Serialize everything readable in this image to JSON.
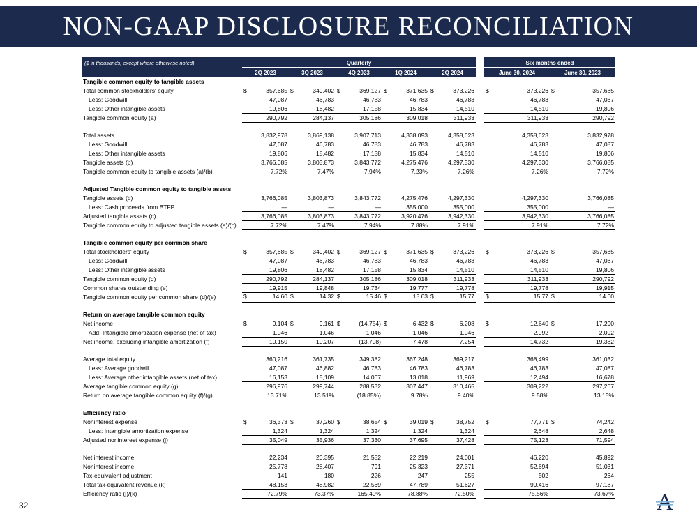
{
  "slide": {
    "title": "NON-GAAP DISCLOSURE RECONCILIATION",
    "page_number": "32",
    "logo_letter": "A",
    "accent_navy": "#1c2b4d",
    "logo_line_blue": "#7fb2d9"
  },
  "table": {
    "note": "($ in thousands, except where otherwise noted)",
    "group_headers": [
      {
        "label": "Quarterly"
      },
      {
        "label": "Six months ended"
      }
    ],
    "quarter_columns": [
      "2Q 2023",
      "3Q 2023",
      "4Q 2023",
      "1Q 2024",
      "2Q 2024"
    ],
    "period_columns": [
      "June 30, 2024",
      "June 30, 2023"
    ],
    "rows": [
      {
        "type": "section",
        "label": "Tangible common equity to tangible assets"
      },
      {
        "type": "data",
        "label": "Total common stockholders' equity",
        "dollar": true,
        "values": [
          "357,685",
          "349,402",
          "369,127",
          "371,635",
          "373,226",
          "373,226",
          "357,685"
        ]
      },
      {
        "type": "data",
        "label": "Less: Goodwill",
        "indent": true,
        "values": [
          "47,087",
          "46,783",
          "46,783",
          "46,783",
          "46,783",
          "46,783",
          "47,087"
        ]
      },
      {
        "type": "data",
        "label": "Less: Other intangible assets",
        "indent": true,
        "values": [
          "19,806",
          "18,482",
          "17,158",
          "15,834",
          "14,510",
          "14,510",
          "19,806"
        ]
      },
      {
        "type": "data",
        "label": "Tangible common equity (a)",
        "border": "total",
        "values": [
          "290,792",
          "284,137",
          "305,186",
          "309,018",
          "311,933",
          "311,933",
          "290,792"
        ]
      },
      {
        "type": "blank"
      },
      {
        "type": "data",
        "label": "Total assets",
        "values": [
          "3,832,978",
          "3,869,138",
          "3,907,713",
          "4,338,093",
          "4,358,623",
          "4,358,623",
          "3,832,978"
        ]
      },
      {
        "type": "data",
        "label": "Less: Goodwill",
        "indent": true,
        "values": [
          "47,087",
          "46,783",
          "46,783",
          "46,783",
          "46,783",
          "46,783",
          "47,087"
        ]
      },
      {
        "type": "data",
        "label": "Less: Other intangible assets",
        "indent": true,
        "values": [
          "19,806",
          "18,482",
          "17,158",
          "15,834",
          "14,510",
          "14,510",
          "19,806"
        ]
      },
      {
        "type": "data",
        "label": "Tangible assets (b)",
        "border": "total",
        "values": [
          "3,766,085",
          "3,803,873",
          "3,843,772",
          "4,275,476",
          "4,297,330",
          "4,297,330",
          "3,766,085"
        ]
      },
      {
        "type": "data",
        "label": "Tangible common equity to tangible assets (a)/(b)",
        "border": "bottom",
        "values": [
          "7.72%",
          "7.47%",
          "7.94%",
          "7.23%",
          "7.26%",
          "7.26%",
          "7.72%"
        ]
      },
      {
        "type": "blank"
      },
      {
        "type": "section",
        "label": "Adjusted Tangible common equity to tangible assets"
      },
      {
        "type": "data",
        "label": "Tangible assets (b)",
        "values": [
          "3,766,085",
          "3,803,873",
          "3,843,772",
          "4,275,476",
          "4,297,330",
          "4,297,330",
          "3,766,085"
        ]
      },
      {
        "type": "data",
        "label": "Less: Cash proceeds from BTFP",
        "indent": true,
        "values": [
          "—",
          "—",
          "—",
          "355,000",
          "355,000",
          "355,000",
          "—"
        ]
      },
      {
        "type": "data",
        "label": "Adjusted tangible assets (c)",
        "border": "total",
        "values": [
          "3,766,085",
          "3,803,873",
          "3,843,772",
          "3,920,476",
          "3,942,330",
          "3,942,330",
          "3,766,085"
        ]
      },
      {
        "type": "data",
        "label": "Tangible common equity to adjusted tangible assets (a)/(c)",
        "border": "bottom",
        "values": [
          "7.72%",
          "7.47%",
          "7.94%",
          "7.88%",
          "7.91%",
          "7.91%",
          "7.72%"
        ]
      },
      {
        "type": "blank"
      },
      {
        "type": "section",
        "label": "Tangible common equity per common share"
      },
      {
        "type": "data",
        "label": "Total stockholders' equity",
        "dollar": true,
        "values": [
          "357,685",
          "349,402",
          "369,127",
          "371,635",
          "373,226",
          "373,226",
          "357,685"
        ]
      },
      {
        "type": "data",
        "label": "Less: Goodwill",
        "indent": true,
        "values": [
          "47,087",
          "46,783",
          "46,783",
          "46,783",
          "46,783",
          "46,783",
          "47,087"
        ]
      },
      {
        "type": "data",
        "label": "Less: Other intangible assets",
        "indent": true,
        "values": [
          "19,806",
          "18,482",
          "17,158",
          "15,834",
          "14,510",
          "14,510",
          "19,806"
        ]
      },
      {
        "type": "data",
        "label": "Tangible common equity (d)",
        "border": "total",
        "values": [
          "290,792",
          "284,137",
          "305,186",
          "309,018",
          "311,933",
          "311,933",
          "290,792"
        ]
      },
      {
        "type": "data",
        "label": "Common shares outstanding (e)",
        "values": [
          "19,915",
          "19,848",
          "19,734",
          "19,777",
          "19,778",
          "19,778",
          "19,915"
        ]
      },
      {
        "type": "data",
        "label": "Tangible common equity per common share (d)/(e)",
        "dollar": true,
        "border": "final",
        "values": [
          "14.60",
          "14.32",
          "15.46",
          "15.63",
          "15.77",
          "15.77",
          "14.60"
        ]
      },
      {
        "type": "blank"
      },
      {
        "type": "section",
        "label": "Return on average tangible common equity"
      },
      {
        "type": "data",
        "label": "Net income",
        "dollar": true,
        "values": [
          "9,104",
          "9,161",
          "(14,754)",
          "6,432",
          "6,208",
          "12,640",
          "17,290"
        ]
      },
      {
        "type": "data",
        "label": "Add: Intangible amortization expense (net of tax)",
        "indent": true,
        "values": [
          "1,046",
          "1,046",
          "1,046",
          "1,046",
          "1,046",
          "2,092",
          "2,092"
        ]
      },
      {
        "type": "data",
        "label": "Net income, excluding intangible amortization (f)",
        "border": "total",
        "values": [
          "10,150",
          "10,207",
          "(13,708)",
          "7,478",
          "7,254",
          "14,732",
          "19,382"
        ]
      },
      {
        "type": "blank"
      },
      {
        "type": "data",
        "label": "Average total equity",
        "values": [
          "360,216",
          "361,735",
          "349,382",
          "367,248",
          "369,217",
          "368,499",
          "361,032"
        ]
      },
      {
        "type": "data",
        "label": "Less: Average goodwill",
        "indent": true,
        "values": [
          "47,087",
          "46,882",
          "46,783",
          "46,783",
          "46,783",
          "46,783",
          "47,087"
        ]
      },
      {
        "type": "data",
        "label": "Less: Average other intangible assets (net of tax)",
        "indent": true,
        "values": [
          "16,153",
          "15,109",
          "14,067",
          "13,018",
          "11,969",
          "12,494",
          "16,678"
        ]
      },
      {
        "type": "data",
        "label": "Average tangible common equity (g)",
        "border": "total",
        "values": [
          "296,976",
          "299,744",
          "288,532",
          "307,447",
          "310,465",
          "309,222",
          "297,267"
        ]
      },
      {
        "type": "data",
        "label": "Return on average tangible common equity (f)/(g)",
        "border": "bottom",
        "values": [
          "13.71%",
          "13.51%",
          "(18.85%)",
          "9.78%",
          "9.40%",
          "9.58%",
          "13.15%"
        ]
      },
      {
        "type": "blank"
      },
      {
        "type": "section",
        "label": "Efficiency ratio"
      },
      {
        "type": "data",
        "label": "Noninterest expense",
        "dollar": true,
        "values": [
          "36,373",
          "37,260",
          "38,654",
          "39,019",
          "38,752",
          "77,771",
          "74,242"
        ]
      },
      {
        "type": "data",
        "label": "Less: Intangible amortization expense",
        "indent": true,
        "values": [
          "1,324",
          "1,324",
          "1,324",
          "1,324",
          "1,324",
          "2,648",
          "2,648"
        ]
      },
      {
        "type": "data",
        "label": "Adjusted noninterest expense (j)",
        "border": "total",
        "values": [
          "35,049",
          "35,936",
          "37,330",
          "37,695",
          "37,428",
          "75,123",
          "71,594"
        ]
      },
      {
        "type": "blank"
      },
      {
        "type": "data",
        "label": "Net interest income",
        "values": [
          "22,234",
          "20,395",
          "21,552",
          "22,219",
          "24,001",
          "46,220",
          "45,892"
        ]
      },
      {
        "type": "data",
        "label": "Noninterest income",
        "values": [
          "25,778",
          "28,407",
          "791",
          "25,323",
          "27,371",
          "52,694",
          "51,031"
        ]
      },
      {
        "type": "data",
        "label": "Tax-equivalent adjustment",
        "values": [
          "141",
          "180",
          "226",
          "247",
          "255",
          "502",
          "264"
        ]
      },
      {
        "type": "data",
        "label": "Total tax-equivalent revenue (k)",
        "border": "total",
        "values": [
          "48,153",
          "48,982",
          "22,569",
          "47,789",
          "51,627",
          "99,416",
          "97,187"
        ]
      },
      {
        "type": "data",
        "label": "Efficiency ratio (j)/(k)",
        "border": "bottom",
        "values": [
          "72.79%",
          "73.37%",
          "165.40%",
          "78.88%",
          "72.50%",
          "75.56%",
          "73.67%"
        ]
      }
    ]
  }
}
